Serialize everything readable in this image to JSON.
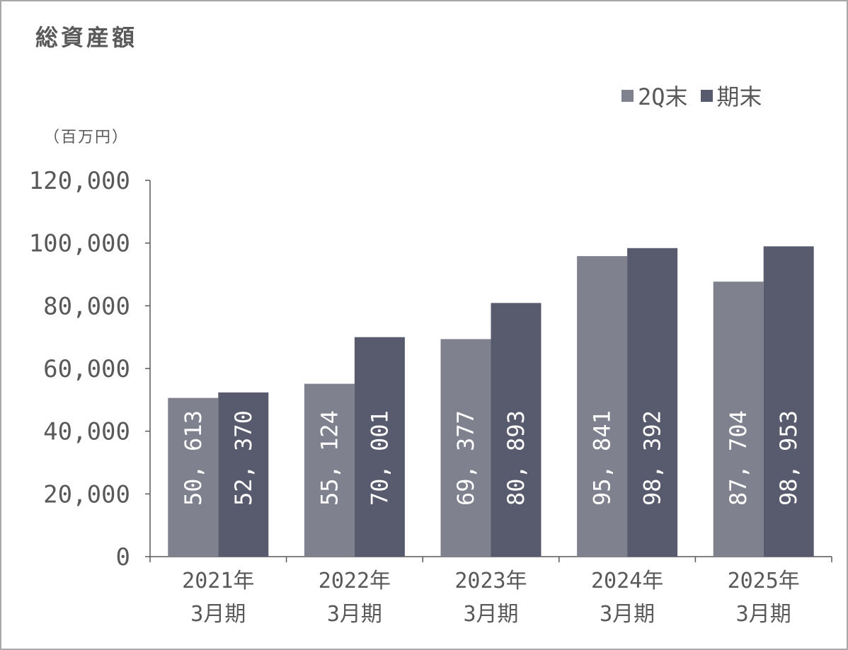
{
  "title": "総資産額",
  "unit": "（百万円）",
  "colors": {
    "q2": "#80818f",
    "annual": "#585b6d",
    "axis": "#595959"
  },
  "chart_data": {
    "type": "bar",
    "title": "総資産額",
    "ylabel": "（百万円）",
    "ylim": [
      0,
      120000
    ],
    "yticks": [
      "0",
      "20,000",
      "40,000",
      "60,000",
      "80,000",
      "100,000",
      "120,000"
    ],
    "categories": [
      [
        "2021年",
        "3月期"
      ],
      [
        "2022年",
        "3月期"
      ],
      [
        "2023年",
        "3月期"
      ],
      [
        "2024年",
        "3月期"
      ],
      [
        "2025年",
        "3月期"
      ]
    ],
    "series": [
      {
        "name": "2Q末",
        "values": [
          50613,
          55124,
          69377,
          95841,
          87704
        ],
        "labels": [
          "50, 613",
          "55, 124",
          "69, 377",
          "95, 841",
          "87, 704"
        ]
      },
      {
        "name": "期末",
        "values": [
          52370,
          70001,
          80893,
          98392,
          98953
        ],
        "labels": [
          "52, 370",
          "70, 001",
          "80, 893",
          "98, 392",
          "98, 953"
        ]
      }
    ],
    "legend_position": "top-right",
    "grid": false
  }
}
